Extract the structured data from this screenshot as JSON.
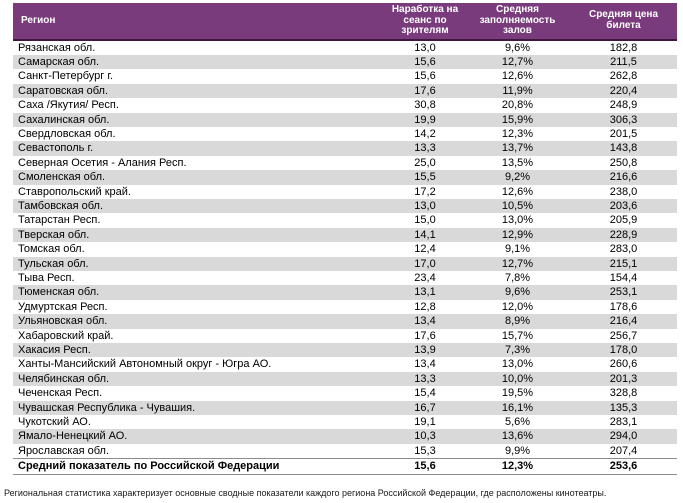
{
  "table": {
    "columns": [
      "Регион",
      "Наработка на сеанс по зрителям",
      "Средняя заполняемость залов",
      "Средняя цена билета"
    ],
    "rows": [
      [
        "Рязанская обл.",
        "13,0",
        "9,6%",
        "182,8"
      ],
      [
        "Самарская обл.",
        "15,6",
        "12,7%",
        "211,5"
      ],
      [
        "Санкт-Петербург г.",
        "15,6",
        "12,6%",
        "262,8"
      ],
      [
        "Саратовская обл.",
        "17,6",
        "11,9%",
        "220,4"
      ],
      [
        "Саха /Якутия/ Респ.",
        "30,8",
        "20,8%",
        "248,9"
      ],
      [
        "Сахалинская обл.",
        "19,9",
        "15,9%",
        "306,3"
      ],
      [
        "Свердловская обл.",
        "14,2",
        "12,3%",
        "201,5"
      ],
      [
        "Севастополь г.",
        "13,3",
        "13,7%",
        "143,8"
      ],
      [
        "Северная Осетия - Алания Респ.",
        "25,0",
        "13,5%",
        "250,8"
      ],
      [
        "Смоленская обл.",
        "15,5",
        "9,2%",
        "216,6"
      ],
      [
        "Ставропольский край.",
        "17,2",
        "12,6%",
        "238,0"
      ],
      [
        "Тамбовская обл.",
        "13,0",
        "10,5%",
        "203,6"
      ],
      [
        "Татарстан Респ.",
        "15,0",
        "13,0%",
        "205,9"
      ],
      [
        "Тверская обл.",
        "14,1",
        "12,9%",
        "228,9"
      ],
      [
        "Томская обл.",
        "12,4",
        "9,1%",
        "283,0"
      ],
      [
        "Тульская обл.",
        "17,0",
        "12,7%",
        "215,1"
      ],
      [
        "Тыва Респ.",
        "23,4",
        "7,8%",
        "154,4"
      ],
      [
        "Тюменская обл.",
        "13,1",
        "9,6%",
        "253,1"
      ],
      [
        "Удмуртская Респ.",
        "12,8",
        "12,0%",
        "178,6"
      ],
      [
        "Ульяновская обл.",
        "13,4",
        "8,9%",
        "216,4"
      ],
      [
        "Хабаровский край.",
        "17,6",
        "15,7%",
        "256,7"
      ],
      [
        "Хакасия Респ.",
        "13,9",
        "7,3%",
        "178,0"
      ],
      [
        "Ханты-Мансийский Автономный округ - Югра АО.",
        "13,4",
        "13,0%",
        "260,6"
      ],
      [
        "Челябинская обл.",
        "13,3",
        "10,0%",
        "201,3"
      ],
      [
        "Чеченская Респ.",
        "15,4",
        "19,5%",
        "328,8"
      ],
      [
        "Чувашская Республика - Чувашия.",
        "16,7",
        "16,1%",
        "135,3"
      ],
      [
        "Чукотский АО.",
        "19,1",
        "5,6%",
        "283,1"
      ],
      [
        "Ямало-Ненецкий АО.",
        "10,3",
        "13,6%",
        "294,0"
      ],
      [
        "Ярославская обл.",
        "15,3",
        "9,9%",
        "207,4"
      ]
    ],
    "summary_row": [
      "Средний показатель по Российской Федерации",
      "15,6",
      "12,3%",
      "253,6"
    ]
  },
  "footnote": "Региональная статистика характеризует основные сводные показатели каждого региона Российской Федерации, где расположены кинотеатры.",
  "colors": {
    "header_bg": "#7a3b7d",
    "header_text": "#ffffff",
    "header_border": "#43163f",
    "row_stripe": "#d9d9d9",
    "summary_border": "#8c8c8c"
  }
}
